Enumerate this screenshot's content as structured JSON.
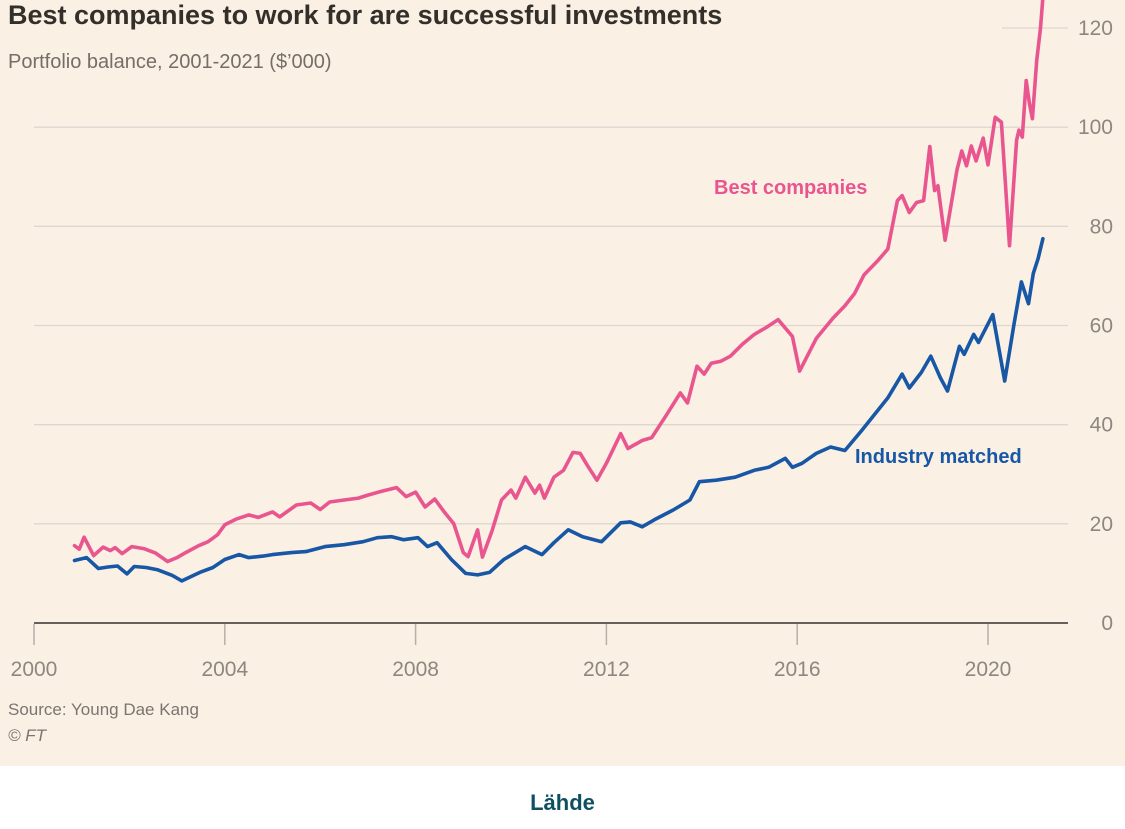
{
  "chart_data": {
    "type": "line",
    "title": "Best companies to work for are successful investments",
    "subtitle": "Portfolio balance, 2001-2021 ($’000)",
    "source_line": "Source: Young Dae Kang",
    "credit": "© FT",
    "xlabel": "",
    "ylabel": "$'000",
    "xlim": [
      2000,
      2021.8
    ],
    "ylim": [
      0,
      126
    ],
    "xticks": [
      2000,
      2004,
      2008,
      2012,
      2016,
      2020
    ],
    "yticks": [
      0,
      20,
      40,
      60,
      80,
      100,
      120
    ],
    "grid": true,
    "legend_position": "inline-labels",
    "series": [
      {
        "name": "Industry matched",
        "color": "#1757A6",
        "points": [
          [
            2000.85,
            12.6
          ],
          [
            2001.1,
            13.2
          ],
          [
            2001.35,
            11.0
          ],
          [
            2001.55,
            11.3
          ],
          [
            2001.75,
            11.5
          ],
          [
            2001.95,
            9.9
          ],
          [
            2002.1,
            11.4
          ],
          [
            2002.35,
            11.2
          ],
          [
            2002.6,
            10.7
          ],
          [
            2002.9,
            9.6
          ],
          [
            2003.1,
            8.5
          ],
          [
            2003.3,
            9.4
          ],
          [
            2003.5,
            10.3
          ],
          [
            2003.75,
            11.2
          ],
          [
            2004.0,
            12.8
          ],
          [
            2004.3,
            13.8
          ],
          [
            2004.5,
            13.2
          ],
          [
            2004.8,
            13.5
          ],
          [
            2005.0,
            13.8
          ],
          [
            2005.4,
            14.2
          ],
          [
            2005.7,
            14.4
          ],
          [
            2006.1,
            15.4
          ],
          [
            2006.5,
            15.8
          ],
          [
            2006.9,
            16.4
          ],
          [
            2007.2,
            17.2
          ],
          [
            2007.5,
            17.4
          ],
          [
            2007.75,
            16.8
          ],
          [
            2008.05,
            17.2
          ],
          [
            2008.25,
            15.4
          ],
          [
            2008.45,
            16.2
          ],
          [
            2008.75,
            12.8
          ],
          [
            2009.05,
            10.0
          ],
          [
            2009.3,
            9.7
          ],
          [
            2009.55,
            10.2
          ],
          [
            2009.85,
            12.8
          ],
          [
            2010.3,
            15.4
          ],
          [
            2010.65,
            13.8
          ],
          [
            2010.9,
            16.2
          ],
          [
            2011.2,
            18.8
          ],
          [
            2011.5,
            17.4
          ],
          [
            2011.9,
            16.4
          ],
          [
            2012.3,
            20.2
          ],
          [
            2012.5,
            20.4
          ],
          [
            2012.75,
            19.4
          ],
          [
            2013.0,
            20.8
          ],
          [
            2013.4,
            22.8
          ],
          [
            2013.75,
            24.8
          ],
          [
            2013.95,
            28.5
          ],
          [
            2014.3,
            28.8
          ],
          [
            2014.7,
            29.4
          ],
          [
            2015.1,
            30.8
          ],
          [
            2015.4,
            31.4
          ],
          [
            2015.75,
            33.2
          ],
          [
            2015.9,
            31.4
          ],
          [
            2016.1,
            32.2
          ],
          [
            2016.4,
            34.2
          ],
          [
            2016.7,
            35.5
          ],
          [
            2017.0,
            34.8
          ],
          [
            2017.35,
            38.8
          ],
          [
            2017.9,
            45.4
          ],
          [
            2018.2,
            50.2
          ],
          [
            2018.35,
            47.4
          ],
          [
            2018.6,
            50.5
          ],
          [
            2018.8,
            53.8
          ],
          [
            2019.0,
            49.5
          ],
          [
            2019.15,
            46.8
          ],
          [
            2019.4,
            55.8
          ],
          [
            2019.5,
            54.2
          ],
          [
            2019.7,
            58.2
          ],
          [
            2019.8,
            56.6
          ],
          [
            2020.1,
            62.2
          ],
          [
            2020.35,
            48.8
          ],
          [
            2020.55,
            60.5
          ],
          [
            2020.7,
            68.8
          ],
          [
            2020.85,
            64.4
          ],
          [
            2020.95,
            70.5
          ],
          [
            2021.05,
            73.5
          ],
          [
            2021.15,
            77.5
          ]
        ]
      },
      {
        "name": "Best companies",
        "color": "#E9568F",
        "points": [
          [
            2000.85,
            15.6
          ],
          [
            2000.95,
            14.9
          ],
          [
            2001.05,
            17.3
          ],
          [
            2001.25,
            13.6
          ],
          [
            2001.45,
            15.3
          ],
          [
            2001.6,
            14.6
          ],
          [
            2001.7,
            15.2
          ],
          [
            2001.85,
            14.0
          ],
          [
            2002.05,
            15.4
          ],
          [
            2002.3,
            15.0
          ],
          [
            2002.55,
            14.1
          ],
          [
            2002.8,
            12.4
          ],
          [
            2003.0,
            13.2
          ],
          [
            2003.2,
            14.3
          ],
          [
            2003.45,
            15.6
          ],
          [
            2003.65,
            16.4
          ],
          [
            2003.85,
            17.8
          ],
          [
            2004.0,
            19.8
          ],
          [
            2004.25,
            21.0
          ],
          [
            2004.5,
            21.8
          ],
          [
            2004.7,
            21.3
          ],
          [
            2005.0,
            22.4
          ],
          [
            2005.15,
            21.4
          ],
          [
            2005.5,
            23.8
          ],
          [
            2005.8,
            24.2
          ],
          [
            2006.0,
            22.9
          ],
          [
            2006.2,
            24.4
          ],
          [
            2006.5,
            24.8
          ],
          [
            2006.8,
            25.2
          ],
          [
            2007.0,
            25.8
          ],
          [
            2007.3,
            26.6
          ],
          [
            2007.6,
            27.3
          ],
          [
            2007.8,
            25.5
          ],
          [
            2008.0,
            26.4
          ],
          [
            2008.2,
            23.4
          ],
          [
            2008.4,
            25.0
          ],
          [
            2008.6,
            22.4
          ],
          [
            2008.8,
            20.0
          ],
          [
            2009.0,
            14.2
          ],
          [
            2009.1,
            13.4
          ],
          [
            2009.3,
            18.8
          ],
          [
            2009.4,
            13.3
          ],
          [
            2009.6,
            18.5
          ],
          [
            2009.8,
            24.8
          ],
          [
            2010.0,
            26.8
          ],
          [
            2010.1,
            25.2
          ],
          [
            2010.3,
            29.4
          ],
          [
            2010.5,
            26.2
          ],
          [
            2010.6,
            27.8
          ],
          [
            2010.7,
            25.2
          ],
          [
            2010.9,
            29.4
          ],
          [
            2011.1,
            30.8
          ],
          [
            2011.3,
            34.4
          ],
          [
            2011.45,
            34.2
          ],
          [
            2011.6,
            31.8
          ],
          [
            2011.8,
            28.8
          ],
          [
            2012.0,
            32.2
          ],
          [
            2012.3,
            38.2
          ],
          [
            2012.45,
            35.2
          ],
          [
            2012.75,
            36.8
          ],
          [
            2012.95,
            37.4
          ],
          [
            2013.25,
            41.8
          ],
          [
            2013.55,
            46.4
          ],
          [
            2013.7,
            44.4
          ],
          [
            2013.9,
            51.8
          ],
          [
            2014.05,
            50.2
          ],
          [
            2014.2,
            52.4
          ],
          [
            2014.4,
            52.8
          ],
          [
            2014.6,
            53.8
          ],
          [
            2014.85,
            56.2
          ],
          [
            2015.1,
            58.2
          ],
          [
            2015.35,
            59.6
          ],
          [
            2015.6,
            61.2
          ],
          [
            2015.9,
            57.8
          ],
          [
            2016.05,
            50.8
          ],
          [
            2016.4,
            57.4
          ],
          [
            2016.75,
            61.5
          ],
          [
            2017.0,
            64.0
          ],
          [
            2017.2,
            66.4
          ],
          [
            2017.4,
            70.2
          ],
          [
            2017.7,
            73.2
          ],
          [
            2017.9,
            75.4
          ],
          [
            2018.1,
            85.2
          ],
          [
            2018.2,
            86.2
          ],
          [
            2018.35,
            82.8
          ],
          [
            2018.5,
            84.8
          ],
          [
            2018.65,
            85.2
          ],
          [
            2018.78,
            96.1
          ],
          [
            2018.88,
            87.2
          ],
          [
            2018.95,
            88.2
          ],
          [
            2019.1,
            77.2
          ],
          [
            2019.35,
            91.4
          ],
          [
            2019.45,
            95.2
          ],
          [
            2019.55,
            92.2
          ],
          [
            2019.65,
            96.2
          ],
          [
            2019.75,
            93.2
          ],
          [
            2019.9,
            97.8
          ],
          [
            2020.0,
            92.4
          ],
          [
            2020.15,
            102.0
          ],
          [
            2020.28,
            101.0
          ],
          [
            2020.45,
            76.1
          ],
          [
            2020.6,
            97.4
          ],
          [
            2020.65,
            99.4
          ],
          [
            2020.72,
            98.0
          ],
          [
            2020.8,
            109.4
          ],
          [
            2020.87,
            104.7
          ],
          [
            2020.93,
            101.7
          ],
          [
            2021.02,
            113.4
          ],
          [
            2021.1,
            120.0
          ],
          [
            2021.17,
            128.5
          ]
        ]
      }
    ]
  },
  "footer": {
    "caption": "Lähde"
  },
  "colors": {
    "background": "#FBF0E4",
    "footer_background": "#FFFFFF",
    "best_companies_pink": "#E9568F",
    "industry_matched_blue": "#1757A6",
    "gridline": "#DED7D0",
    "axis_line": "#66605A",
    "tick": "#B7B0A9",
    "axis_label": "#8D8780",
    "title": "#33302C",
    "subtitle": "#746E67",
    "source": "#7B7570",
    "caption": "#0F5060"
  }
}
